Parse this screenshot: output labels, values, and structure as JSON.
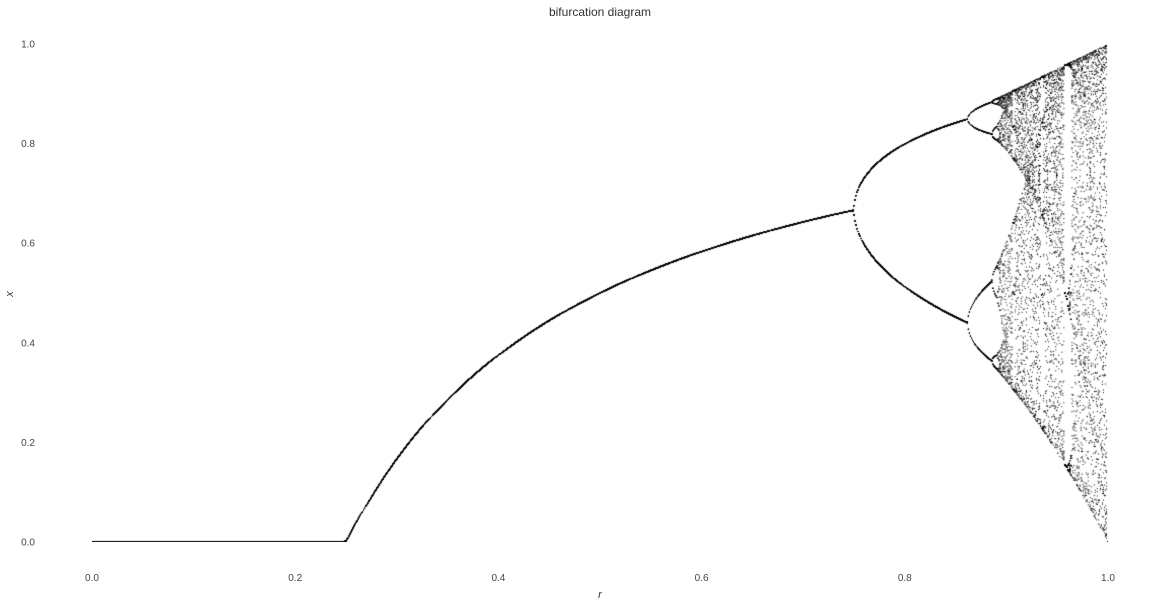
{
  "chart_data": {
    "type": "scatter",
    "title": "bifurcation diagram",
    "xlabel": "r",
    "ylabel": "x",
    "xlim": [
      0.0,
      1.0
    ],
    "ylim": [
      0.0,
      1.0
    ],
    "grid": false,
    "legend": "none",
    "x_ticks": [
      "0.0",
      "0.2",
      "0.4",
      "0.6",
      "0.8",
      "1.0"
    ],
    "y_ticks": [
      "0.0",
      "0.2",
      "0.4",
      "0.6",
      "0.8",
      "1.0"
    ],
    "x_tick_values": [
      0.0,
      0.2,
      0.4,
      0.6,
      0.8,
      1.0
    ],
    "y_tick_values": [
      0.0,
      0.2,
      0.4,
      0.6,
      0.8,
      1.0
    ],
    "map": "x_next = 4 r x (1 - x)",
    "r_samples": 1000,
    "iterations_kept": 60,
    "marker_color": "#000000",
    "background_color": "#ffffff"
  }
}
